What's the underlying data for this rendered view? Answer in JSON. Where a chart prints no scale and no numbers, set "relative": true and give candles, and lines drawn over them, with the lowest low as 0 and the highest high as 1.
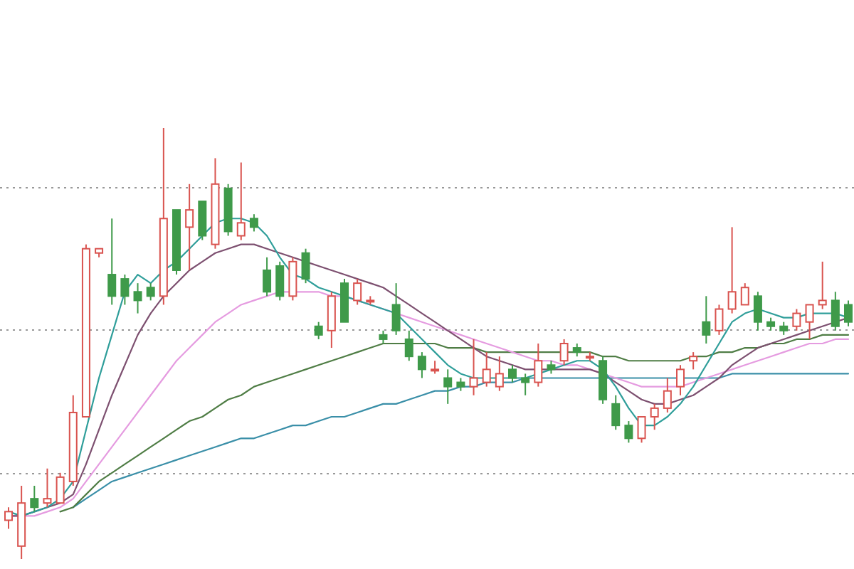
{
  "chart_data": {
    "type": "candlestick",
    "relative": true,
    "grid": "y",
    "categories": [
      null,
      null,
      null,
      null,
      null,
      null,
      null,
      null,
      null,
      null,
      null,
      null,
      null,
      null,
      null,
      null,
      null,
      null,
      null,
      null,
      null,
      null,
      null,
      null,
      null,
      null,
      null,
      null,
      null,
      null,
      null,
      null,
      null,
      null,
      null,
      null,
      null,
      null,
      null,
      null,
      null,
      null,
      null,
      null,
      null,
      null,
      null,
      null,
      null,
      null,
      null,
      null,
      null,
      null,
      null,
      null,
      null,
      null,
      null,
      null,
      null,
      null,
      null,
      null,
      null,
      null
    ],
    "series": [
      {
        "type": "line",
        "color": "#3a8fa8",
        "values": [
          null,
          null,
          null,
          null,
          null,
          0.12,
          0.14,
          0.16,
          0.18,
          0.19,
          0.2,
          0.21,
          0.22,
          0.23,
          0.24,
          0.25,
          0.26,
          0.27,
          0.28,
          0.28,
          0.29,
          0.3,
          0.31,
          0.31,
          0.32,
          0.33,
          0.33,
          0.34,
          0.35,
          0.36,
          0.36,
          0.37,
          0.38,
          0.39,
          0.39,
          0.4,
          0.4,
          0.41,
          0.41,
          0.41,
          0.42,
          0.42,
          0.42,
          0.42,
          0.42,
          0.42,
          0.42,
          0.42,
          0.42,
          0.42,
          0.42,
          0.42,
          0.42,
          0.42,
          0.42,
          0.42,
          0.43,
          0.43,
          0.43,
          0.43,
          0.43,
          0.43,
          0.43,
          0.43,
          0.43,
          0.43
        ]
      },
      {
        "type": "line",
        "color": "#4f7d45",
        "values": [
          null,
          null,
          null,
          null,
          0.11,
          0.12,
          0.15,
          0.18,
          0.2,
          0.22,
          0.24,
          0.26,
          0.28,
          0.3,
          0.32,
          0.33,
          0.35,
          0.37,
          0.38,
          0.4,
          0.41,
          0.42,
          0.43,
          0.44,
          0.45,
          0.46,
          0.47,
          0.48,
          0.49,
          0.5,
          0.5,
          0.5,
          0.5,
          0.5,
          0.49,
          0.49,
          0.49,
          0.48,
          0.48,
          0.48,
          0.48,
          0.48,
          0.48,
          0.48,
          0.48,
          0.48,
          0.47,
          0.47,
          0.46,
          0.46,
          0.46,
          0.46,
          0.46,
          0.47,
          0.47,
          0.48,
          0.48,
          0.49,
          0.49,
          0.5,
          0.5,
          0.51,
          0.51,
          0.52,
          0.52,
          0.52
        ]
      },
      {
        "type": "line",
        "color": "#e59be0",
        "values": [
          0.1,
          0.1,
          0.1,
          0.11,
          0.12,
          0.14,
          0.18,
          0.22,
          0.26,
          0.3,
          0.34,
          0.38,
          0.42,
          0.46,
          0.49,
          0.52,
          0.55,
          0.57,
          0.59,
          0.6,
          0.61,
          0.62,
          0.62,
          0.62,
          0.62,
          0.61,
          0.61,
          0.6,
          0.59,
          0.58,
          0.57,
          0.56,
          0.55,
          0.54,
          0.53,
          0.52,
          0.51,
          0.5,
          0.49,
          0.48,
          0.47,
          0.46,
          0.46,
          0.45,
          0.45,
          0.44,
          0.43,
          0.42,
          0.41,
          0.4,
          0.4,
          0.4,
          0.4,
          0.41,
          0.42,
          0.43,
          0.44,
          0.45,
          0.46,
          0.47,
          0.48,
          0.49,
          0.5,
          0.5,
          0.51,
          0.51
        ]
      },
      {
        "type": "line",
        "color": "#7d5070",
        "values": [
          0.1,
          0.1,
          0.11,
          0.12,
          0.13,
          0.15,
          0.22,
          0.3,
          0.38,
          0.45,
          0.52,
          0.57,
          0.61,
          0.64,
          0.67,
          0.69,
          0.71,
          0.72,
          0.73,
          0.73,
          0.72,
          0.71,
          0.7,
          0.69,
          0.68,
          0.67,
          0.66,
          0.65,
          0.64,
          0.63,
          0.61,
          0.59,
          0.57,
          0.55,
          0.53,
          0.51,
          0.49,
          0.47,
          0.46,
          0.45,
          0.44,
          0.44,
          0.44,
          0.44,
          0.44,
          0.44,
          0.43,
          0.41,
          0.39,
          0.37,
          0.36,
          0.36,
          0.37,
          0.38,
          0.4,
          0.42,
          0.45,
          0.47,
          0.49,
          0.5,
          0.51,
          0.52,
          0.53,
          0.54,
          0.55,
          0.56
        ]
      },
      {
        "type": "line",
        "color": "#2f9e9a",
        "values": [
          0.11,
          0.1,
          0.11,
          0.12,
          0.14,
          0.18,
          0.3,
          0.42,
          0.52,
          0.62,
          0.66,
          0.64,
          0.67,
          0.69,
          0.72,
          0.75,
          0.78,
          0.79,
          0.79,
          0.78,
          0.75,
          0.7,
          0.66,
          0.65,
          0.63,
          0.62,
          0.61,
          0.6,
          0.59,
          0.58,
          0.57,
          0.54,
          0.51,
          0.48,
          0.45,
          0.43,
          0.42,
          0.42,
          0.42,
          0.42,
          0.42,
          0.43,
          0.44,
          0.45,
          0.46,
          0.46,
          0.44,
          0.4,
          0.35,
          0.31,
          0.31,
          0.33,
          0.36,
          0.4,
          0.45,
          0.5,
          0.55,
          0.57,
          0.58,
          0.57,
          0.56,
          0.56,
          0.57,
          0.57,
          0.57,
          0.56
        ]
      },
      {
        "ohlc": [
          [
            0.09,
            0.12,
            0.07,
            0.11
          ],
          [
            0.03,
            0.17,
            0.0,
            0.13
          ],
          [
            0.14,
            0.17,
            0.11,
            0.12
          ],
          [
            0.13,
            0.21,
            0.12,
            0.14
          ],
          [
            0.13,
            0.2,
            0.13,
            0.19
          ],
          [
            0.18,
            0.38,
            0.17,
            0.34
          ],
          [
            0.33,
            0.73,
            0.33,
            0.72
          ],
          [
            0.71,
            0.72,
            0.7,
            0.72
          ],
          [
            0.66,
            0.79,
            0.59,
            0.61
          ],
          [
            0.65,
            0.66,
            0.59,
            0.61
          ],
          [
            0.62,
            0.64,
            0.57,
            0.6
          ],
          [
            0.63,
            0.64,
            0.6,
            0.61
          ],
          [
            0.61,
            1.0,
            0.59,
            0.79
          ],
          [
            0.81,
            0.81,
            0.66,
            0.67
          ],
          [
            0.77,
            0.87,
            0.67,
            0.81
          ],
          [
            0.83,
            0.83,
            0.74,
            0.75
          ],
          [
            0.73,
            0.93,
            0.72,
            0.87
          ],
          [
            0.86,
            0.87,
            0.75,
            0.76
          ],
          [
            0.75,
            0.92,
            0.74,
            0.78
          ],
          [
            0.79,
            0.8,
            0.76,
            0.77
          ],
          [
            0.67,
            0.7,
            0.61,
            0.62
          ],
          [
            0.68,
            0.69,
            0.6,
            0.61
          ],
          [
            0.61,
            0.7,
            0.6,
            0.69
          ],
          [
            0.71,
            0.72,
            0.64,
            0.65
          ],
          [
            0.54,
            0.55,
            0.51,
            0.52
          ],
          [
            0.53,
            0.62,
            0.49,
            0.61
          ],
          [
            0.64,
            0.65,
            0.55,
            0.55
          ],
          [
            0.6,
            0.65,
            0.59,
            0.64
          ],
          [
            0.6,
            0.61,
            0.59,
            0.6
          ],
          [
            0.52,
            0.53,
            0.5,
            0.51
          ],
          [
            0.59,
            0.64,
            0.52,
            0.53
          ],
          [
            0.51,
            0.53,
            0.46,
            0.47
          ],
          [
            0.47,
            0.48,
            0.42,
            0.44
          ],
          [
            0.44,
            0.46,
            0.43,
            0.44
          ],
          [
            0.42,
            0.44,
            0.36,
            0.4
          ],
          [
            0.41,
            0.42,
            0.39,
            0.4
          ],
          [
            0.4,
            0.51,
            0.38,
            0.42
          ],
          [
            0.41,
            0.48,
            0.4,
            0.44
          ],
          [
            0.4,
            0.47,
            0.39,
            0.43
          ],
          [
            0.44,
            0.45,
            0.41,
            0.42
          ],
          [
            0.42,
            0.43,
            0.38,
            0.41
          ],
          [
            0.41,
            0.5,
            0.4,
            0.46
          ],
          [
            0.45,
            0.46,
            0.43,
            0.44
          ],
          [
            0.46,
            0.51,
            0.45,
            0.5
          ],
          [
            0.49,
            0.5,
            0.47,
            0.48
          ],
          [
            0.47,
            0.48,
            0.46,
            0.47
          ],
          [
            0.46,
            0.47,
            0.36,
            0.37
          ],
          [
            0.36,
            0.38,
            0.3,
            0.31
          ],
          [
            0.31,
            0.32,
            0.27,
            0.28
          ],
          [
            0.28,
            0.33,
            0.27,
            0.33
          ],
          [
            0.33,
            0.36,
            0.3,
            0.35
          ],
          [
            0.35,
            0.42,
            0.34,
            0.39
          ],
          [
            0.4,
            0.45,
            0.38,
            0.44
          ],
          [
            0.46,
            0.48,
            0.44,
            0.47
          ],
          [
            0.55,
            0.61,
            0.5,
            0.52
          ],
          [
            0.53,
            0.59,
            0.52,
            0.58
          ],
          [
            0.58,
            0.77,
            0.57,
            0.62
          ],
          [
            0.59,
            0.64,
            0.59,
            0.63
          ],
          [
            0.61,
            0.62,
            0.53,
            0.55
          ],
          [
            0.55,
            0.56,
            0.53,
            0.54
          ],
          [
            0.54,
            0.55,
            0.52,
            0.53
          ],
          [
            0.54,
            0.58,
            0.53,
            0.57
          ],
          [
            0.55,
            0.59,
            0.51,
            0.59
          ],
          [
            0.59,
            0.69,
            0.58,
            0.6
          ],
          [
            0.6,
            0.62,
            0.53,
            0.54
          ],
          [
            0.59,
            0.6,
            0.54,
            0.55
          ]
        ]
      }
    ]
  }
}
